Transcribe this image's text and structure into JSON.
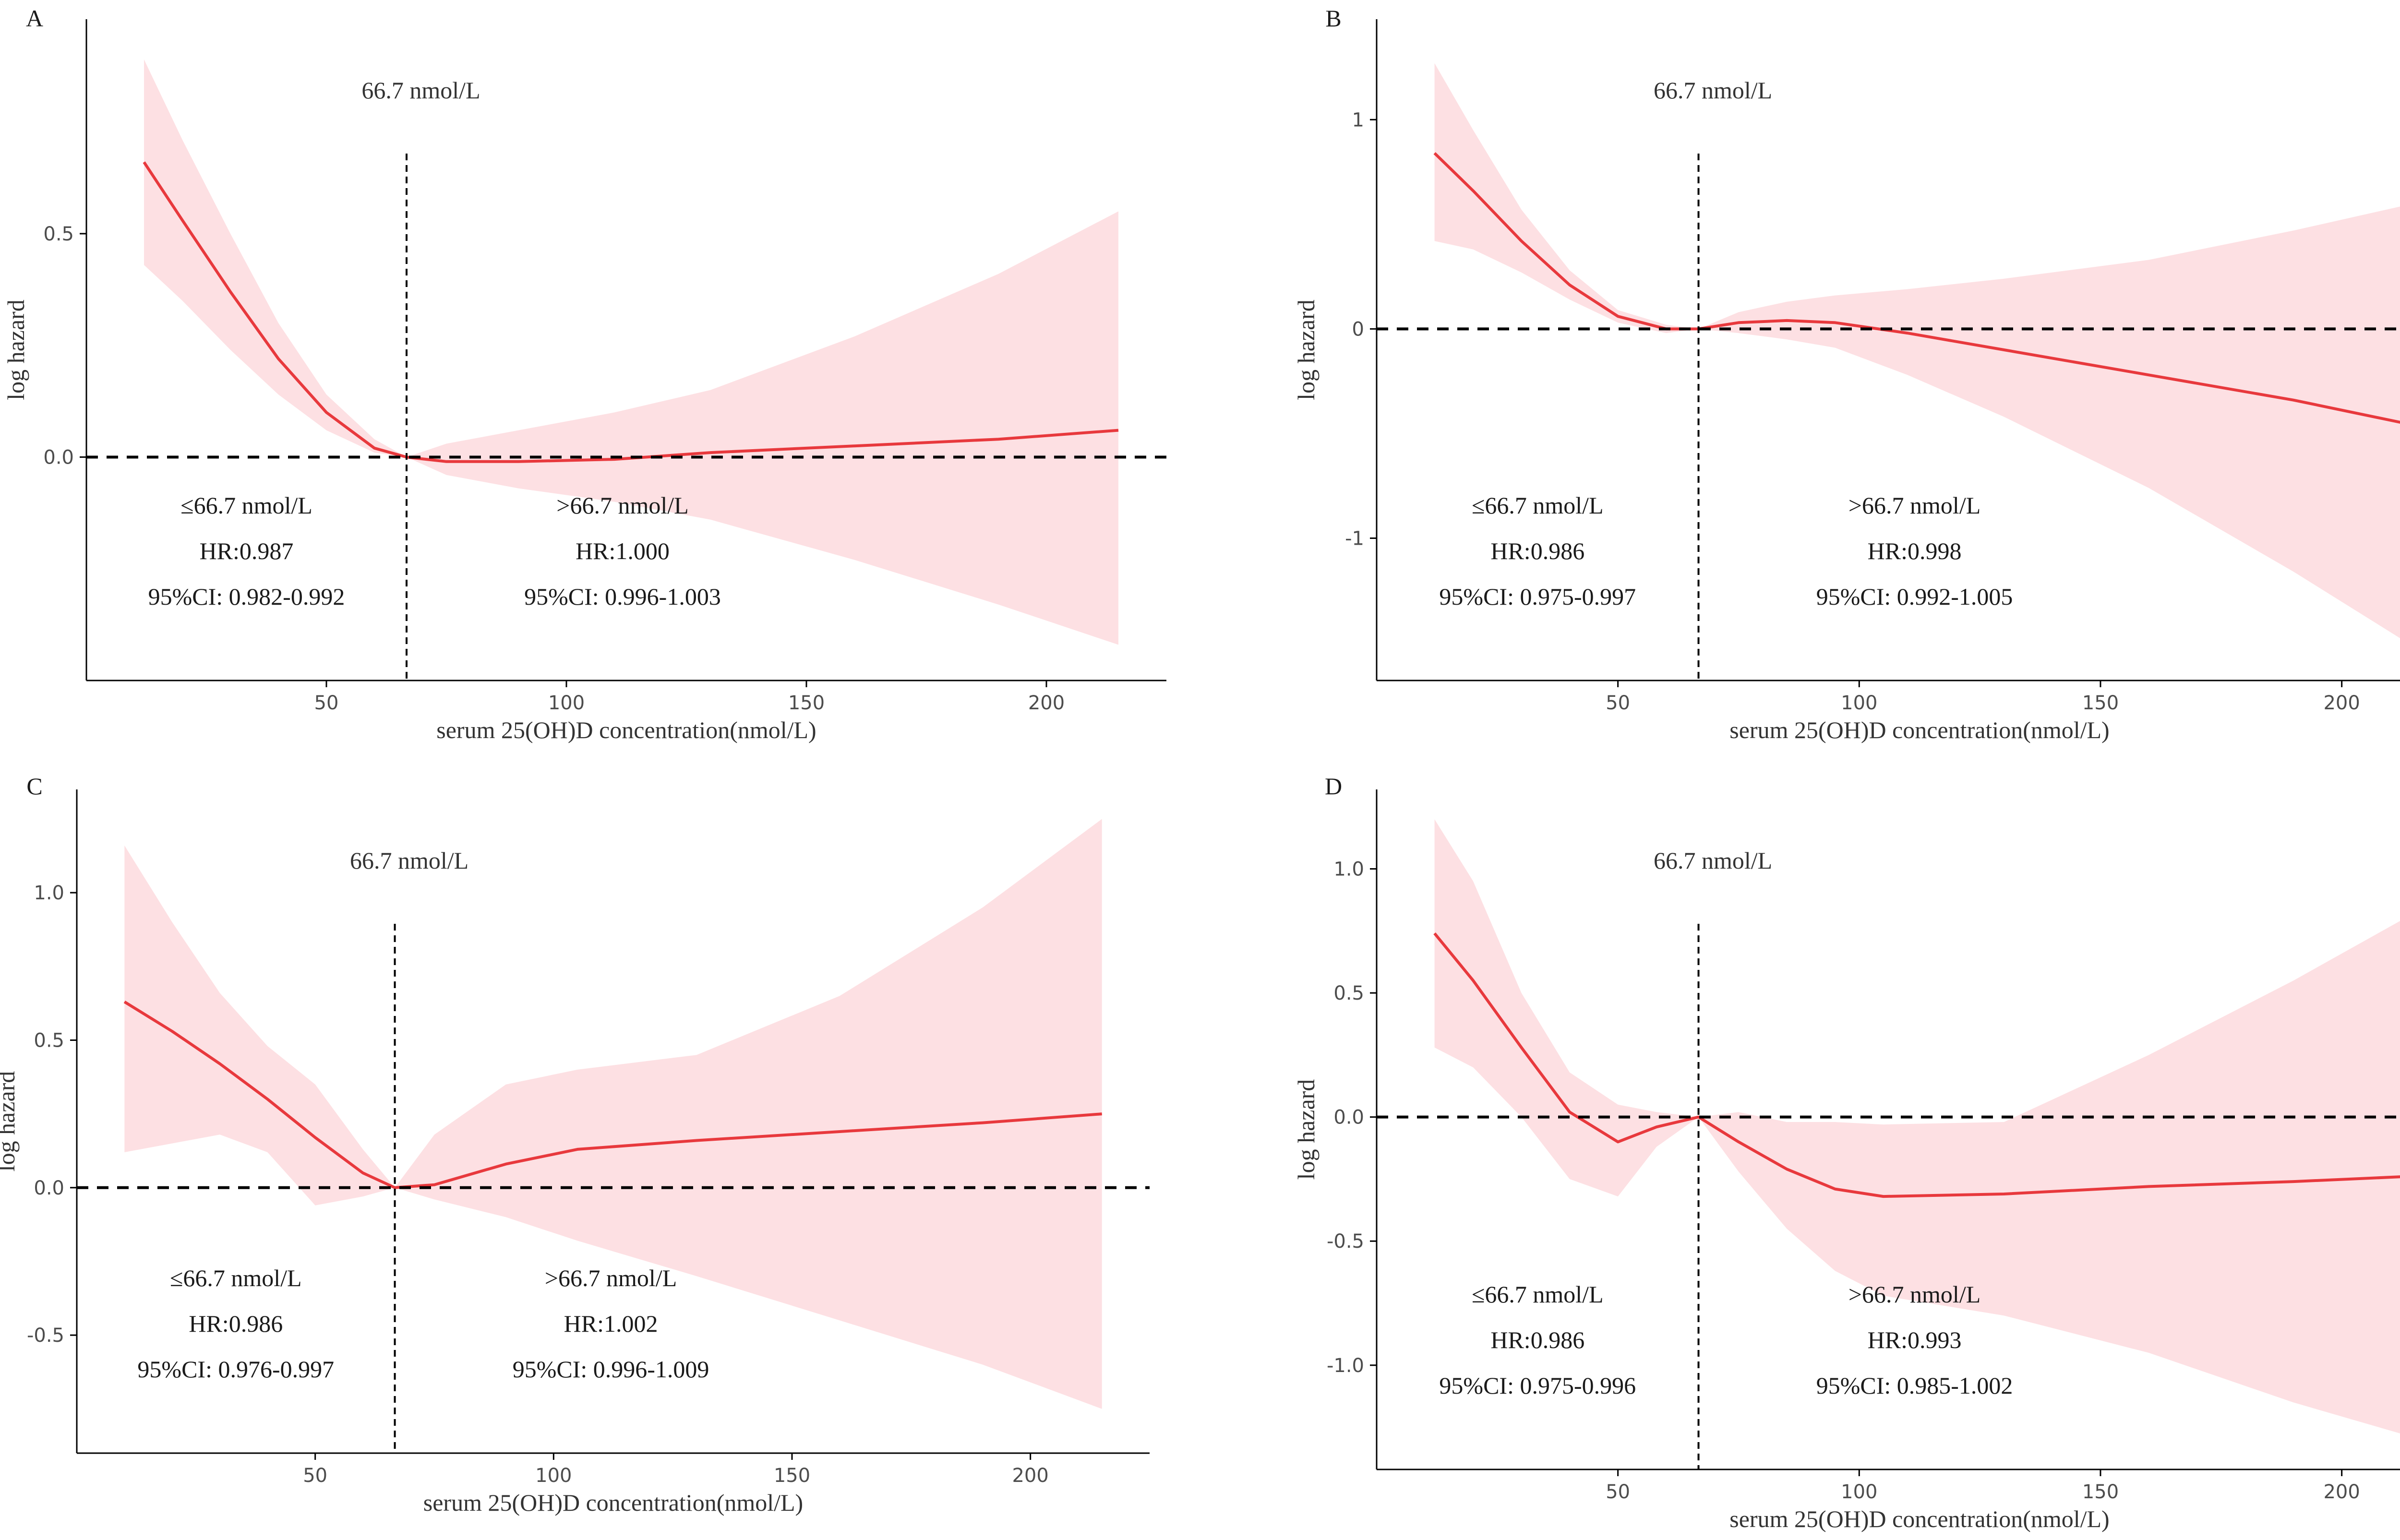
{
  "colors": {
    "curve": "#e8393d",
    "ci_band": "#fde0e3",
    "axis": "#000000",
    "reference": "#000000"
  },
  "chart_data": [
    {
      "type": "line",
      "panel": "A",
      "xlabel": "serum 25(OH)D concentration(nmol/L)",
      "ylabel": "log hazard",
      "xlim": [
        0,
        225
      ],
      "ylim": [
        -0.5,
        0.98
      ],
      "xticks": [
        50,
        100,
        150,
        200
      ],
      "xtick_labels": [
        "50",
        "100",
        "150",
        "200"
      ],
      "yticks": [
        0.5,
        0.0
      ],
      "ytick_labels": [
        "0.5",
        "0.0"
      ],
      "cutpoint": 66.7,
      "cutpoint_label": "66.7 nmol/L",
      "reference_y": 0,
      "x": [
        12,
        20,
        30,
        40,
        50,
        60,
        66.7,
        75,
        90,
        110,
        130,
        160,
        190,
        215
      ],
      "y": [
        0.66,
        0.53,
        0.37,
        0.22,
        0.1,
        0.02,
        0.0,
        -0.01,
        -0.01,
        -0.005,
        0.01,
        0.025,
        0.04,
        0.06
      ],
      "ci_lower": [
        0.43,
        0.35,
        0.24,
        0.14,
        0.06,
        0.01,
        0.0,
        -0.04,
        -0.07,
        -0.1,
        -0.14,
        -0.23,
        -0.33,
        -0.42
      ],
      "ci_upper": [
        0.89,
        0.71,
        0.5,
        0.3,
        0.14,
        0.04,
        0.0,
        0.03,
        0.06,
        0.1,
        0.15,
        0.27,
        0.41,
        0.55
      ],
      "annotations": {
        "left": {
          "range": "≤66.7 nmol/L",
          "hr": "HR:0.987",
          "ci": "95%CI: 0.982-0.992"
        },
        "right": {
          "range": ">66.7 nmol/L",
          "hr": "HR:1.000",
          "ci": "95%CI: 0.996-1.003"
        }
      }
    },
    {
      "type": "line",
      "panel": "B",
      "xlabel": "serum 25(OH)D concentration(nmol/L)",
      "ylabel": "log hazard",
      "xlim": [
        0,
        225
      ],
      "ylim": [
        -1.68,
        1.48
      ],
      "xticks": [
        50,
        100,
        150,
        200
      ],
      "xtick_labels": [
        "50",
        "100",
        "150",
        "200"
      ],
      "yticks": [
        1,
        0,
        -1
      ],
      "ytick_labels": [
        "1",
        "0",
        "-1"
      ],
      "cutpoint": 66.7,
      "cutpoint_label": "66.7 nmol/L",
      "reference_y": 0,
      "x": [
        12,
        20,
        30,
        40,
        50,
        60,
        66.7,
        75,
        85,
        95,
        110,
        130,
        160,
        190,
        215
      ],
      "y": [
        0.84,
        0.66,
        0.42,
        0.21,
        0.06,
        0.0,
        0.0,
        0.03,
        0.04,
        0.03,
        -0.02,
        -0.1,
        -0.22,
        -0.34,
        -0.46
      ],
      "ci_lower": [
        0.42,
        0.38,
        0.27,
        0.14,
        0.03,
        -0.02,
        0.0,
        -0.02,
        -0.05,
        -0.09,
        -0.22,
        -0.42,
        -0.76,
        -1.16,
        -1.52
      ],
      "ci_upper": [
        1.27,
        0.95,
        0.57,
        0.28,
        0.09,
        0.02,
        0.0,
        0.08,
        0.13,
        0.16,
        0.19,
        0.24,
        0.33,
        0.47,
        0.6
      ],
      "annotations": {
        "left": {
          "range": "≤66.7 nmol/L",
          "hr": "HR:0.986",
          "ci": "95%CI: 0.975-0.997"
        },
        "right": {
          "range": ">66.7 nmol/L",
          "hr": "HR:0.998",
          "ci": "95%CI: 0.992-1.005"
        }
      }
    },
    {
      "type": "line",
      "panel": "C",
      "xlabel": "serum 25(OH)D concentration(nmol/L)",
      "ylabel": "log hazard",
      "xlim": [
        0,
        225
      ],
      "ylim": [
        -0.9,
        1.35
      ],
      "xticks": [
        50,
        100,
        150,
        200
      ],
      "xtick_labels": [
        "50",
        "100",
        "150",
        "200"
      ],
      "yticks": [
        1.0,
        0.5,
        0.0,
        -0.5
      ],
      "ytick_labels": [
        "1.0",
        "0.5",
        "0.0",
        "-0.5"
      ],
      "cutpoint": 66.7,
      "cutpoint_label": "66.7 nmol/L",
      "reference_y": 0,
      "x": [
        10,
        20,
        30,
        40,
        50,
        60,
        66.7,
        75,
        90,
        105,
        130,
        160,
        190,
        215
      ],
      "y": [
        0.63,
        0.53,
        0.42,
        0.3,
        0.17,
        0.05,
        0.0,
        0.01,
        0.08,
        0.13,
        0.16,
        0.19,
        0.22,
        0.25
      ],
      "ci_lower": [
        0.12,
        0.15,
        0.18,
        0.12,
        -0.06,
        -0.03,
        0.0,
        -0.04,
        -0.1,
        -0.18,
        -0.3,
        -0.45,
        -0.6,
        -0.75
      ],
      "ci_upper": [
        1.16,
        0.9,
        0.66,
        0.48,
        0.35,
        0.13,
        0.0,
        0.18,
        0.35,
        0.4,
        0.45,
        0.65,
        0.95,
        1.25
      ],
      "annotations": {
        "left": {
          "range": "≤66.7 nmol/L",
          "hr": "HR:0.986",
          "ci": "95%CI: 0.976-0.997"
        },
        "right": {
          "range": ">66.7 nmol/L",
          "hr": "HR:1.002",
          "ci": "95%CI: 0.996-1.009"
        }
      }
    },
    {
      "type": "line",
      "panel": "D",
      "xlabel": "serum 25(OH)D concentration(nmol/L)",
      "ylabel": "log hazard",
      "xlim": [
        0,
        225
      ],
      "ylim": [
        -1.42,
        1.32
      ],
      "xticks": [
        50,
        100,
        150,
        200
      ],
      "xtick_labels": [
        "50",
        "100",
        "150",
        "200"
      ],
      "yticks": [
        1.0,
        0.5,
        0.0,
        -0.5,
        -1.0
      ],
      "ytick_labels": [
        "1.0",
        "0.5",
        "0.0",
        "-0.5",
        "-1.0"
      ],
      "cutpoint": 66.7,
      "cutpoint_label": "66.7 nmol/L",
      "reference_y": 0,
      "x": [
        12,
        20,
        30,
        40,
        50,
        58,
        66.7,
        75,
        85,
        95,
        105,
        130,
        160,
        190,
        213
      ],
      "y": [
        0.74,
        0.55,
        0.28,
        0.02,
        -0.1,
        -0.04,
        0.0,
        -0.1,
        -0.21,
        -0.29,
        -0.32,
        -0.31,
        -0.28,
        -0.26,
        -0.24
      ],
      "ci_lower": [
        0.28,
        0.2,
        0.0,
        -0.25,
        -0.32,
        -0.12,
        0.0,
        -0.22,
        -0.45,
        -0.62,
        -0.72,
        -0.8,
        -0.95,
        -1.15,
        -1.28
      ],
      "ci_upper": [
        1.2,
        0.95,
        0.5,
        0.18,
        0.05,
        0.02,
        0.0,
        0.02,
        -0.02,
        -0.02,
        -0.03,
        -0.02,
        0.25,
        0.55,
        0.8
      ],
      "annotations": {
        "left": {
          "range": "≤66.7 nmol/L",
          "hr": "HR:0.986",
          "ci": "95%CI: 0.975-0.996"
        },
        "right": {
          "range": ">66.7 nmol/L",
          "hr": "HR:0.993",
          "ci": "95%CI: 0.985-1.002"
        }
      }
    }
  ]
}
